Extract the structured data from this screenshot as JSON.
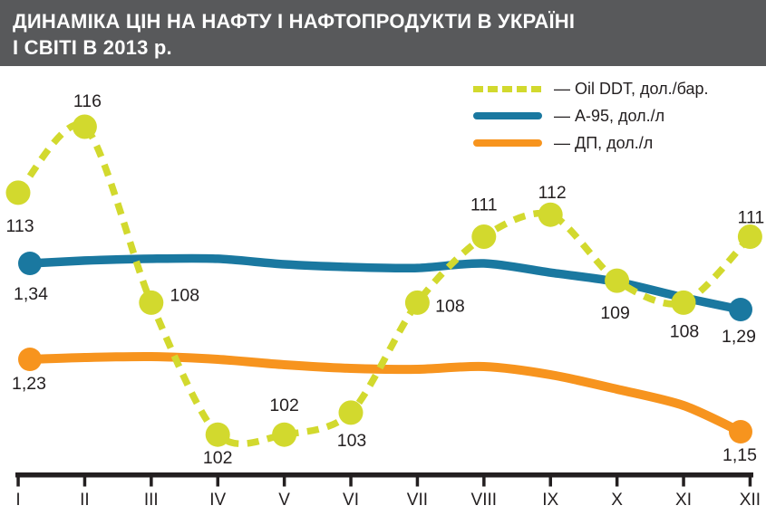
{
  "header": {
    "title_line1": "ДИНАМІКА ЦІН НА НАФТУ І НАФТОПРОДУКТИ В УКРАЇНІ",
    "title_line2": "І СВІТІ В 2013 р.",
    "bg_color": "#58595b",
    "text_color": "#ffffff"
  },
  "legend": {
    "items": [
      {
        "label": "— Oil DDT, дол./бар.",
        "color": "#d2d92e",
        "style": "dashed"
      },
      {
        "label": "— А-95, дол./л",
        "color": "#1a78a0",
        "style": "solid"
      },
      {
        "label": "— ДП, дол./л",
        "color": "#f7941e",
        "style": "solid"
      }
    ]
  },
  "chart_data": {
    "type": "line",
    "title": "ДИНАМІКА ЦІН НА НАФТУ І НАФТОПРОДУКТИ В УКРАЇНІ І СВІТІ В 2013 р.",
    "x_categories": [
      "I",
      "II",
      "III",
      "IV",
      "V",
      "VI",
      "VII",
      "VIII",
      "IX",
      "X",
      "XI",
      "XII"
    ],
    "grid": false,
    "y_axis_shown": false,
    "legend_position": "top-right",
    "series": [
      {
        "name": "Oil DDT, дол./бар.",
        "color": "#d2d92e",
        "line_style": "dashed",
        "markers": "every-point",
        "values": [
          113,
          116,
          108,
          102,
          102,
          103,
          108,
          111,
          112,
          109,
          108,
          111
        ],
        "point_labels": [
          "113",
          "116",
          "108",
          "102",
          "102",
          "103",
          "108",
          "111",
          "112",
          "109",
          "108",
          "111"
        ]
      },
      {
        "name": "А-95, дол./л",
        "color": "#1a78a0",
        "line_style": "solid",
        "markers": "endpoints",
        "values": [
          1.34,
          1.343,
          1.345,
          1.345,
          1.339,
          1.336,
          1.335,
          1.34,
          1.33,
          1.32,
          1.303,
          1.29
        ],
        "point_labels": [
          "1,34",
          null,
          null,
          null,
          null,
          null,
          null,
          null,
          null,
          null,
          null,
          "1,29"
        ]
      },
      {
        "name": "ДП, дол./л",
        "color": "#f7941e",
        "line_style": "solid",
        "markers": "endpoints",
        "values": [
          1.23,
          1.232,
          1.233,
          1.23,
          1.224,
          1.22,
          1.219,
          1.222,
          1.213,
          1.197,
          1.179,
          1.15
        ],
        "point_labels": [
          "1,23",
          null,
          null,
          null,
          null,
          null,
          null,
          null,
          null,
          null,
          null,
          "1,15"
        ]
      }
    ],
    "axis_color": "#231f20",
    "label_color": "#231f20"
  }
}
